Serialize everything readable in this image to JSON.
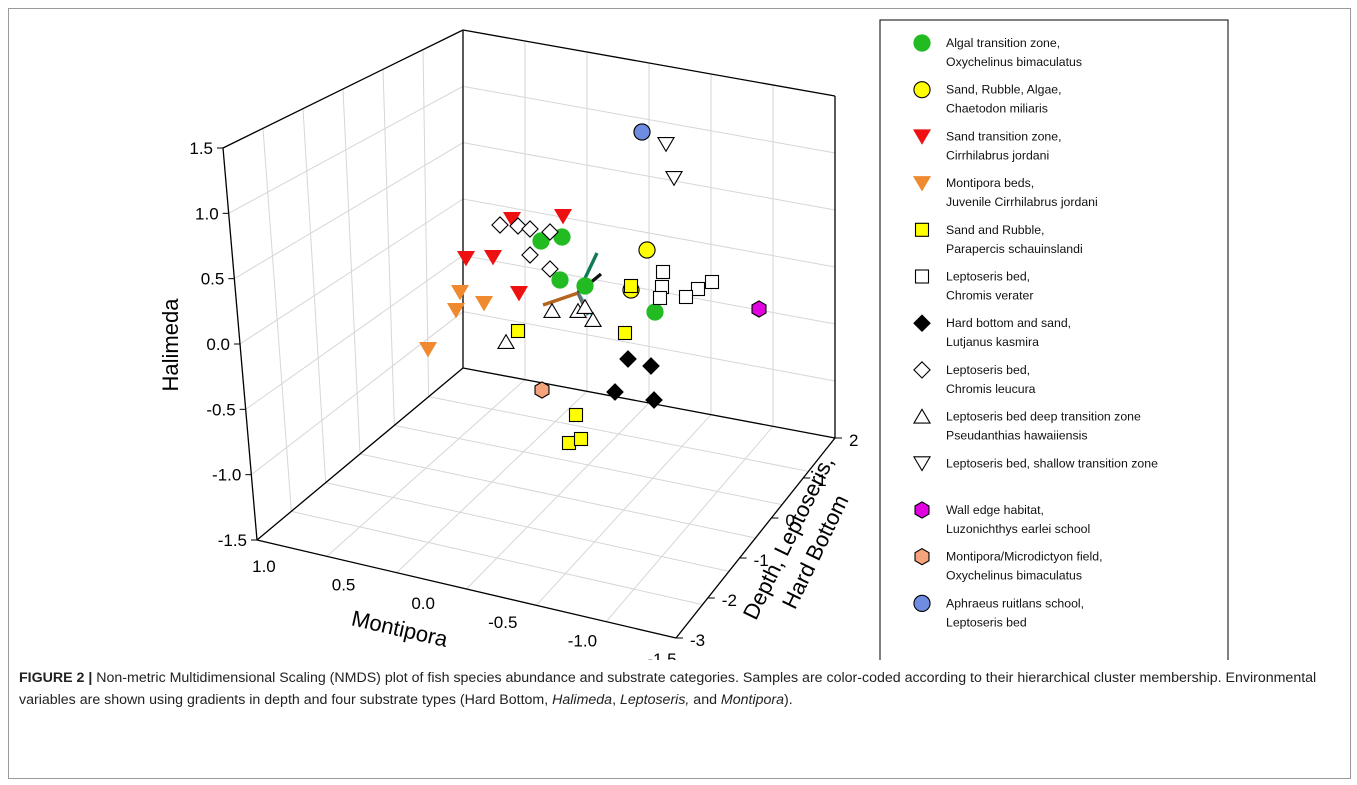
{
  "chart_data": {
    "type": "scatter3d",
    "axes": {
      "montipora": {
        "label": "Montipora",
        "range": [
          -1.5,
          1.2
        ],
        "ticks": [
          "1.0",
          "0.5",
          "0.0",
          "-0.5",
          "-1.0",
          "-1.5"
        ]
      },
      "halimeda": {
        "label": "Halimeda",
        "range": [
          -1.5,
          1.5
        ],
        "ticks": [
          "1.5",
          "1.0",
          "0.5",
          "0.0",
          "-0.5",
          "-1.0",
          "-1.5"
        ]
      },
      "depth": {
        "label_lines": [
          "Depth, Leptoseris,",
          "Hard Bottom"
        ],
        "range": [
          -3,
          2
        ],
        "ticks": [
          "2",
          "1",
          "0",
          "-1",
          "-2",
          "-3"
        ]
      }
    },
    "grid": true,
    "legend_position": "right",
    "series": [
      {
        "name_lines": [
          "Algal transition zone,",
          "Oxychelinus bimaculatus"
        ],
        "color": "#22bb22",
        "stroke": "#22bb22",
        "marker": "circle"
      },
      {
        "name_lines": [
          "Sand, Rubble, Algae,",
          "Chaetodon miliaris"
        ],
        "color": "#ffff00",
        "stroke": "#000000",
        "marker": "circle"
      },
      {
        "name_lines": [
          "Sand transition zone,",
          "Cirrhilabrus jordani"
        ],
        "color": "#ee1111",
        "stroke": "#ee1111",
        "marker": "triangle-down"
      },
      {
        "name_lines": [
          "Montipora beds,",
          "Juvenile Cirrhilabrus jordani"
        ],
        "color": "#f08a30",
        "stroke": "#f08a30",
        "marker": "triangle-down"
      },
      {
        "name_lines": [
          "Sand and Rubble,",
          "Parapercis schauinslandi"
        ],
        "color": "#ffff00",
        "stroke": "#000000",
        "marker": "square"
      },
      {
        "name_lines": [
          "Leptoseris bed,",
          "Chromis verater"
        ],
        "color": "#ffffff",
        "stroke": "#000000",
        "marker": "square"
      },
      {
        "name_lines": [
          "Hard bottom and sand,",
          "Lutjanus kasmira"
        ],
        "color": "#000000",
        "stroke": "#000000",
        "marker": "diamond"
      },
      {
        "name_lines": [
          "Leptoseris bed,",
          "Chromis leucura"
        ],
        "color": "#ffffff",
        "stroke": "#000000",
        "marker": "diamond"
      },
      {
        "name_lines": [
          "Leptoseris bed deep transition zone",
          "Pseudanthias hawaiiensis"
        ],
        "color": "#ffffff",
        "stroke": "#000000",
        "marker": "triangle-up"
      },
      {
        "name_lines": [
          "Leptoseris bed, shallow transition zone"
        ],
        "color": "#ffffff",
        "stroke": "#000000",
        "marker": "triangle-down"
      },
      {
        "name_lines": [
          "Wall edge habitat,",
          "Luzonichthys earlei school"
        ],
        "color": "#e000e0",
        "stroke": "#000000",
        "marker": "hexagon"
      },
      {
        "name_lines": [
          "Montipora/Microdictyon field,",
          "Oxychelinus bimaculatus"
        ],
        "color": "#f4a37a",
        "stroke": "#000000",
        "marker": "hexagon"
      },
      {
        "name_lines": [
          "Aphraeus ruitlans school,",
          "Leptoseris bed"
        ],
        "color": "#6f8de0",
        "stroke": "#000000",
        "marker": "circle"
      }
    ],
    "vectors": [
      {
        "color": "#127a5a"
      },
      {
        "color": "#111111"
      },
      {
        "color": "#b5651d"
      },
      {
        "color": "#30c8d8"
      },
      {
        "color": "#6a6a6a"
      }
    ]
  },
  "caption": {
    "label": "FIGURE 2 |",
    "text_parts": [
      " Non-metric Multidimensional Scaling (NMDS) plot of fish species abundance and substrate categories. Samples are color-coded according to their hierarchical cluster membership. Environmental variables are shown using gradients in depth and four substrate types (Hard Bottom, ",
      "Halimeda",
      ", ",
      "Leptoseris,",
      " and ",
      "Montipora",
      ")."
    ]
  }
}
